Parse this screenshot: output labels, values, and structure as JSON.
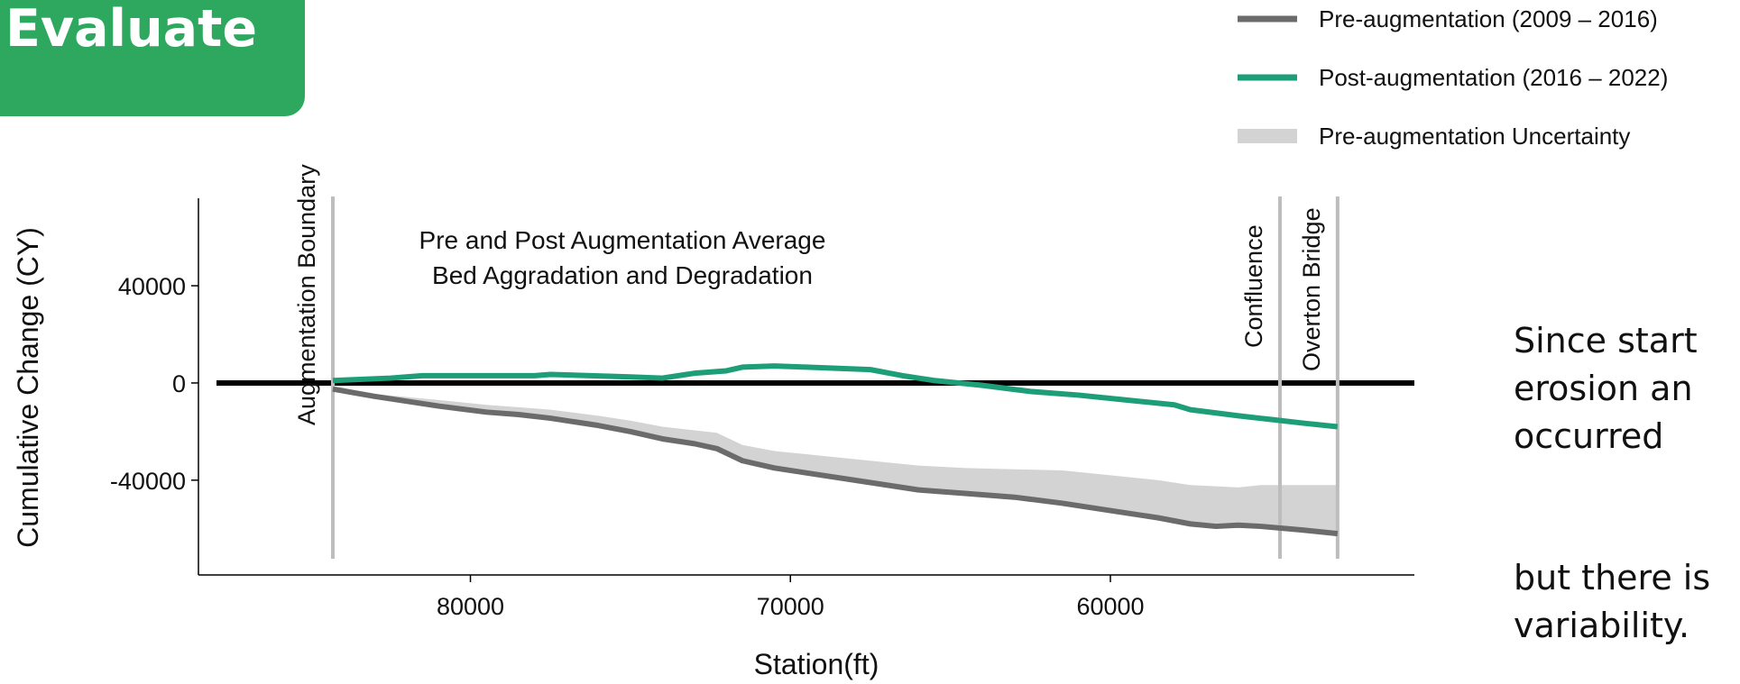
{
  "header": {
    "title": "Evaluate"
  },
  "side_text": {
    "para1": [
      "Since start",
      "erosion an",
      "occurred"
    ],
    "para2": [
      "but there is",
      "variability."
    ]
  },
  "colors": {
    "tag": "#2ea85f",
    "pre": "#6b6b6b",
    "post": "#1e9e78",
    "band": "#d3d3d3",
    "zero_line": "#000000",
    "vline": "#bdbdbd"
  },
  "chart_data": {
    "type": "line",
    "title": "Pre and Post Augmentation Average\nBed Aggradation and Degradation",
    "xlabel": "Station(ft)",
    "ylabel": "Cumulative Change (CY)",
    "x_reversed": true,
    "xlim": [
      88500,
      50500
    ],
    "ylim": [
      -79000,
      76000
    ],
    "xticks": [
      80000,
      70000,
      60000
    ],
    "yticks": [
      40000,
      0,
      -40000
    ],
    "grid": false,
    "legend_position": "top-right",
    "legend": [
      {
        "label": "Pre-augmentation (2009 – 2016)",
        "kind": "line",
        "color": "#6b6b6b"
      },
      {
        "label": "Post-augmentation (2016 – 2022)",
        "kind": "line",
        "color": "#1e9e78"
      },
      {
        "label": "Pre-augmentation Uncertainty",
        "kind": "band",
        "color": "#d3d3d3"
      }
    ],
    "reference_lines": [
      {
        "x": 84300,
        "label": "Augmentation Boundary"
      },
      {
        "x": 54700,
        "label": "Confluence"
      },
      {
        "x": 52900,
        "label": "Overton Bridge"
      }
    ],
    "series": [
      {
        "name": "Pre-augmentation (2009 – 2016)",
        "color": "#6b6b6b",
        "x": [
          84300,
          83000,
          81000,
          79500,
          78500,
          77500,
          76000,
          75000,
          74000,
          73000,
          72300,
          71500,
          70500,
          69000,
          67500,
          66000,
          64500,
          63000,
          61500,
          60000,
          58500,
          57500,
          56700,
          56000,
          55300,
          54000,
          52900
        ],
        "y": [
          -2500,
          -5500,
          -9500,
          -12000,
          -13000,
          -14500,
          -17500,
          -20000,
          -23000,
          -25000,
          -27000,
          -32000,
          -35000,
          -38000,
          -41000,
          -44000,
          -45500,
          -47000,
          -49500,
          -52500,
          -55500,
          -58000,
          -59000,
          -58500,
          -59000,
          -60500,
          -62000
        ]
      },
      {
        "name": "Post-augmentation (2016 – 2022)",
        "color": "#1e9e78",
        "x": [
          84300,
          82500,
          81500,
          80000,
          78000,
          77500,
          75000,
          74000,
          73000,
          72000,
          71500,
          70500,
          69500,
          68500,
          67500,
          66500,
          65500,
          64000,
          62500,
          61000,
          59500,
          58000,
          57500,
          56000,
          55000,
          54000,
          52900
        ],
        "y": [
          1000,
          2000,
          3000,
          3000,
          3000,
          3500,
          2500,
          2000,
          4000,
          5000,
          6500,
          7000,
          6500,
          6000,
          5500,
          3000,
          1000,
          -1000,
          -3500,
          -5000,
          -7000,
          -9000,
          -11000,
          -13500,
          -15000,
          -16500,
          -18000
        ]
      }
    ],
    "uncertainty_band": {
      "name": "Pre-augmentation Uncertainty",
      "color": "#d3d3d3",
      "x": [
        84300,
        83000,
        81000,
        79500,
        78500,
        77500,
        76000,
        75000,
        74000,
        73000,
        72300,
        71500,
        70500,
        69000,
        67500,
        66000,
        64500,
        63000,
        61500,
        60000,
        58500,
        57500,
        56700,
        56000,
        55300,
        54000,
        52900
      ],
      "y_low": [
        -2500,
        -5500,
        -9500,
        -12000,
        -13000,
        -14500,
        -17500,
        -20000,
        -23000,
        -25000,
        -27000,
        -32000,
        -35000,
        -38000,
        -41000,
        -44000,
        -45500,
        -47000,
        -49500,
        -52500,
        -55500,
        -58000,
        -59000,
        -58500,
        -59000,
        -60500,
        -62000
      ],
      "y_high": [
        -2000,
        -4500,
        -7000,
        -9000,
        -10000,
        -11000,
        -13500,
        -15500,
        -18000,
        -19500,
        -20500,
        -25500,
        -28000,
        -30000,
        -32000,
        -34000,
        -35000,
        -35500,
        -36000,
        -38000,
        -40000,
        -42000,
        -42500,
        -43000,
        -42000,
        -42000,
        -42000
      ]
    }
  }
}
